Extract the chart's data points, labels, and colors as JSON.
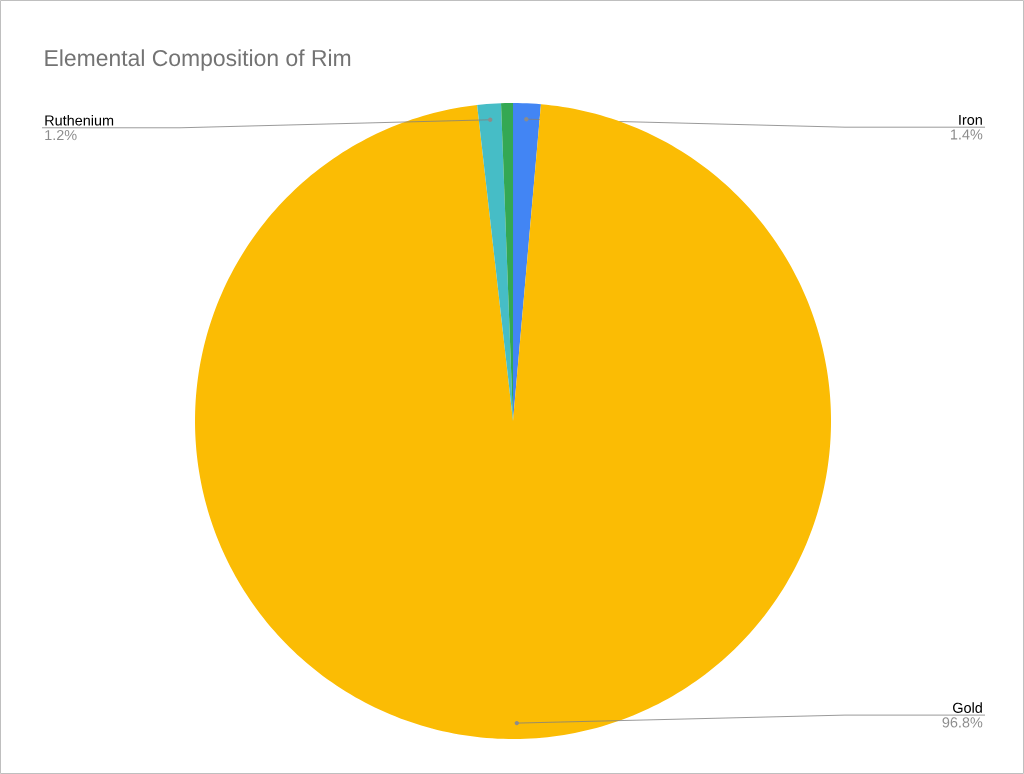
{
  "chart_data": {
    "type": "pie",
    "title": "Elemental Composition of Rim",
    "categories": [
      "Iron",
      "Gold",
      "Ruthenium",
      null
    ],
    "values": [
      1.4,
      96.8,
      1.2,
      0.6
    ],
    "colors": [
      "#4285f4",
      "#fbbc04",
      "#46bdc6",
      "#34a853"
    ],
    "value_labels": [
      "1.4%",
      "96.8%",
      "1.2%",
      null
    ]
  }
}
